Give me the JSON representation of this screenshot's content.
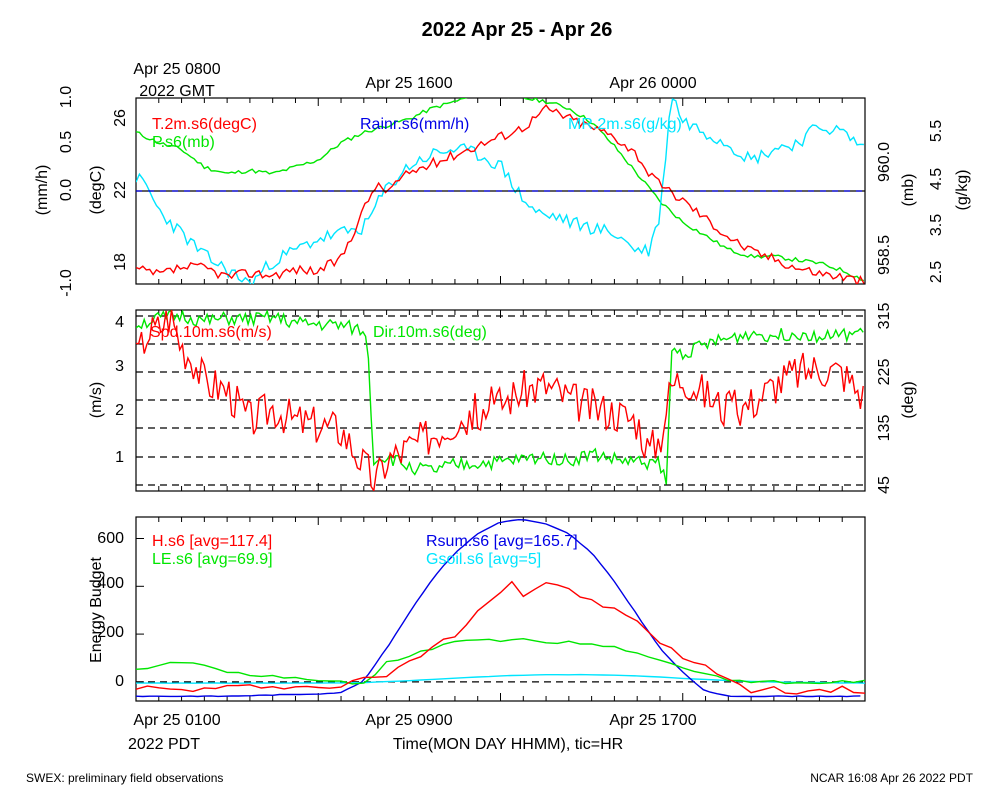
{
  "title": "2022 Apr 25 - Apr 26",
  "top_axis": {
    "labels": [
      "Apr 25 0800",
      "Apr 25 1600",
      "Apr 26 0000"
    ],
    "sublabel": "2022 GMT"
  },
  "bottom_axis": {
    "labels": [
      "Apr 25 0100",
      "Apr 25 0900",
      "Apr 25 1700"
    ],
    "sublabel": "2022 PDT",
    "xlabel": "Time(MON DAY HHMM), tic=HR"
  },
  "footer": {
    "left": "SWEX: preliminary field observations",
    "right": "NCAR 16:08 Apr 26 2022 PDT"
  },
  "colors": {
    "red": "#ff0000",
    "green": "#00e600",
    "blue": "#0000e6",
    "cyan": "#00e5ff",
    "black": "#000000"
  },
  "chart_data": [
    {
      "type": "line",
      "x_hours_pdt": [
        0,
        32
      ],
      "series_labels": [
        {
          "text": "T.2m.s6(degC)",
          "color": "#ff0000"
        },
        {
          "text": "P.s6(mb)",
          "color": "#00e600"
        },
        {
          "text": "Rainr.s6(mm/h)",
          "color": "#0000e6"
        },
        {
          "text": "MR.2m.s6(g/kg)",
          "color": "#00e5ff"
        }
      ],
      "axes": {
        "rain": {
          "label": "(mm/h)",
          "ticks": [
            "-1.0",
            "0.0",
            "0.5",
            "1.0"
          ]
        },
        "temp": {
          "label": "(degC)",
          "ticks": [
            "18",
            "22",
            "26"
          ]
        },
        "press": {
          "label": "(mb)",
          "ticks": [
            "958.5",
            "960.0"
          ]
        },
        "mr": {
          "label": "(g/kg)",
          "ticks": [
            "2.5",
            "3.5",
            "4.5",
            "5.5"
          ]
        }
      },
      "series": [
        {
          "name": "T.2m.s6",
          "unit": "degC",
          "ylim": [
            17.4,
            27.6
          ],
          "x": [
            0,
            1,
            2,
            3,
            4,
            5,
            6,
            7,
            8,
            9,
            10,
            10.5,
            11,
            12,
            13,
            14,
            15,
            16,
            17,
            17.5,
            18,
            18.5,
            19,
            20,
            21,
            22,
            22.5,
            23,
            24,
            25,
            26,
            27,
            28,
            29,
            30,
            31,
            32
          ],
          "y": [
            18.2,
            17.9,
            18.3,
            18.3,
            17.8,
            18.0,
            17.9,
            18.2,
            18.1,
            18.8,
            21.5,
            22.8,
            22.5,
            23.5,
            24.0,
            24.5,
            25.0,
            25.5,
            26.0,
            26.5,
            27.0,
            26.8,
            26.5,
            26.0,
            25.5,
            24.5,
            23.5,
            22.8,
            22.0,
            21.0,
            20.0,
            19.2,
            18.8,
            18.3,
            18.0,
            17.8,
            17.5
          ]
        },
        {
          "name": "P.s6",
          "unit": "mb",
          "ylim": [
            958.2,
            960.9
          ],
          "x": [
            0,
            1,
            2,
            3,
            4,
            5,
            6,
            7,
            8,
            9,
            10,
            11,
            12,
            13,
            14,
            15,
            16,
            17,
            18,
            19,
            20,
            21,
            22,
            23,
            24,
            25,
            26,
            27,
            28,
            29,
            30,
            31,
            32
          ],
          "y": [
            960.4,
            960.25,
            960.15,
            959.9,
            959.8,
            959.85,
            959.8,
            959.9,
            960.0,
            960.25,
            960.4,
            960.5,
            960.6,
            960.75,
            960.85,
            960.95,
            960.95,
            960.9,
            960.85,
            960.75,
            960.55,
            960.2,
            959.8,
            959.4,
            959.1,
            958.9,
            958.7,
            958.6,
            958.6,
            958.55,
            958.5,
            958.4,
            958.25
          ]
        },
        {
          "name": "Rainr.s6",
          "unit": "mm/h",
          "ylim": [
            -1.0,
            1.0
          ],
          "x": [
            0,
            32
          ],
          "y": [
            0.0,
            0.0
          ]
        },
        {
          "name": "MR.2m.s6",
          "unit": "g/kg",
          "ylim": [
            2.5,
            5.8
          ],
          "x": [
            0,
            0.5,
            1,
            2,
            3,
            4,
            5,
            6,
            7,
            8,
            9,
            10,
            11,
            12,
            13,
            14,
            15,
            16,
            16.5,
            17,
            17.5,
            18,
            18.5,
            19,
            20,
            21,
            22,
            22.5,
            23,
            23.5,
            24,
            25,
            26,
            27,
            28,
            29,
            30,
            31,
            32
          ],
          "y": [
            4.4,
            4.2,
            3.8,
            3.4,
            3.0,
            2.75,
            2.5,
            2.9,
            3.1,
            3.3,
            3.4,
            3.5,
            4.2,
            4.6,
            4.8,
            4.9,
            4.8,
            4.6,
            4.3,
            4.0,
            3.8,
            3.7,
            3.7,
            3.6,
            3.5,
            3.4,
            3.1,
            3.1,
            3.7,
            5.9,
            5.4,
            5.2,
            5.0,
            4.7,
            4.9,
            5.0,
            5.3,
            5.2,
            4.9
          ]
        }
      ]
    },
    {
      "type": "line",
      "x_hours_pdt": [
        0,
        32
      ],
      "series_labels": [
        {
          "text": "Spd.10m.s6(m/s)",
          "color": "#ff0000"
        },
        {
          "text": "Dir.10m.s6(deg)",
          "color": "#00e600"
        }
      ],
      "axes": {
        "spd": {
          "label": "(m/s)",
          "ticks": [
            "1",
            "2",
            "3",
            "4"
          ]
        },
        "dir": {
          "label": "(deg)",
          "ticks": [
            "45",
            "135",
            "225",
            "315"
          ]
        }
      },
      "grid": "dashed horizontal",
      "series": [
        {
          "name": "Spd.10m.s6",
          "unit": "m/s",
          "ylim": [
            0.2,
            4.3
          ],
          "x": [
            0,
            0.5,
            1,
            1.5,
            2,
            2.5,
            3,
            4,
            5,
            6,
            7,
            8,
            9,
            9.5,
            10,
            10.5,
            11,
            12,
            13,
            14,
            15,
            16,
            17,
            18,
            19,
            20,
            21,
            22,
            22.5,
            23,
            23.5,
            24,
            25,
            26,
            27,
            28,
            29,
            30,
            31,
            32
          ],
          "y": [
            3.2,
            3.8,
            3.9,
            4.2,
            3.5,
            3.2,
            2.7,
            2.5,
            1.8,
            2.1,
            1.8,
            1.7,
            1.6,
            1.2,
            0.8,
            0.4,
            0.9,
            1.2,
            1.5,
            1.8,
            2.0,
            2.2,
            2.5,
            2.6,
            2.3,
            2.1,
            2.0,
            1.8,
            1.1,
            1.4,
            2.6,
            2.8,
            2.4,
            2.0,
            2.2,
            2.6,
            2.9,
            3.0,
            2.9,
            2.3
          ]
        },
        {
          "name": "Dir.10m.s6",
          "unit": "deg",
          "ylim": [
            30,
            345
          ],
          "x": [
            0,
            1,
            2,
            3,
            4,
            5,
            6,
            7,
            8,
            9,
            10,
            10.2,
            10.4,
            11,
            12,
            13,
            14,
            15,
            16,
            17,
            18,
            19,
            20,
            21,
            22,
            22.5,
            23,
            23.3,
            23.5,
            24,
            25,
            26,
            27,
            28,
            29,
            30,
            31,
            32
          ],
          "y": [
            320,
            330,
            335,
            325,
            330,
            328,
            332,
            322,
            320,
            318,
            308,
            270,
            85,
            90,
            72,
            65,
            75,
            78,
            80,
            85,
            90,
            82,
            95,
            85,
            80,
            80,
            78,
            40,
            275,
            270,
            285,
            295,
            305,
            300,
            305,
            300,
            300,
            310
          ]
        }
      ]
    },
    {
      "type": "line",
      "x_hours_pdt": [
        0,
        32
      ],
      "series_labels": [
        {
          "text": "H.s6 [avg=117.4]",
          "color": "#ff0000"
        },
        {
          "text": "LE.s6 [avg=69.9]",
          "color": "#00e600"
        },
        {
          "text": "Rsum.s6 [avg=165.7]",
          "color": "#0000e6"
        },
        {
          "text": "Gsoil.s6 [avg=5]",
          "color": "#00e5ff"
        }
      ],
      "axes": {
        "energy": {
          "label": "Energy Budget",
          "ticks": [
            "0",
            "200",
            "400",
            "600"
          ]
        }
      },
      "ylim": [
        -80,
        690
      ],
      "series": [
        {
          "name": "H.s6",
          "avg": 117.4,
          "x": [
            0,
            1,
            2,
            3,
            4,
            5,
            6,
            7,
            8,
            9,
            10,
            11,
            12,
            13,
            14,
            15,
            16,
            16.5,
            17,
            18,
            19,
            20,
            21,
            22,
            23,
            24,
            25,
            26,
            27,
            28,
            29,
            30,
            31,
            32
          ],
          "y": [
            -20,
            -30,
            -35,
            -30,
            -25,
            -20,
            -15,
            -20,
            -25,
            -15,
            10,
            30,
            80,
            150,
            200,
            300,
            380,
            420,
            360,
            420,
            380,
            340,
            300,
            250,
            170,
            100,
            60,
            20,
            -40,
            -30,
            -40,
            -40,
            -30,
            -40
          ]
        },
        {
          "name": "LE.s6",
          "avg": 69.9,
          "x": [
            0,
            1,
            2,
            3,
            4,
            5,
            6,
            7,
            8,
            9,
            10,
            11,
            12,
            13,
            14,
            15,
            16,
            17,
            18,
            19,
            20,
            21,
            22,
            23,
            24,
            25,
            26,
            27,
            28,
            29,
            30,
            31,
            32
          ],
          "y": [
            50,
            70,
            85,
            70,
            40,
            30,
            25,
            15,
            10,
            0,
            -10,
            80,
            110,
            140,
            170,
            180,
            170,
            180,
            160,
            170,
            155,
            145,
            120,
            90,
            60,
            30,
            10,
            -5,
            0,
            -5,
            -5,
            0,
            5
          ]
        },
        {
          "name": "Rsum.s6",
          "avg": 165.7,
          "x": [
            0,
            2,
            4,
            6,
            8,
            9,
            10,
            11,
            12,
            13,
            14,
            15,
            16,
            17,
            18,
            19,
            20,
            21,
            22,
            23,
            24,
            25,
            26,
            28,
            30,
            32
          ],
          "y": [
            -60,
            -60,
            -60,
            -55,
            -50,
            -45,
            5,
            140,
            290,
            430,
            540,
            620,
            670,
            680,
            660,
            620,
            540,
            420,
            280,
            140,
            40,
            -40,
            -60,
            -60,
            -60,
            -60
          ]
        },
        {
          "name": "Gsoil.s6",
          "avg": 5,
          "x": [
            0,
            4,
            8,
            10,
            12,
            14,
            16,
            18,
            20,
            22,
            24,
            26,
            28,
            30,
            32
          ],
          "y": [
            -5,
            -5,
            -5,
            -3,
            5,
            15,
            25,
            30,
            30,
            25,
            15,
            5,
            0,
            -3,
            -5
          ]
        }
      ]
    }
  ]
}
